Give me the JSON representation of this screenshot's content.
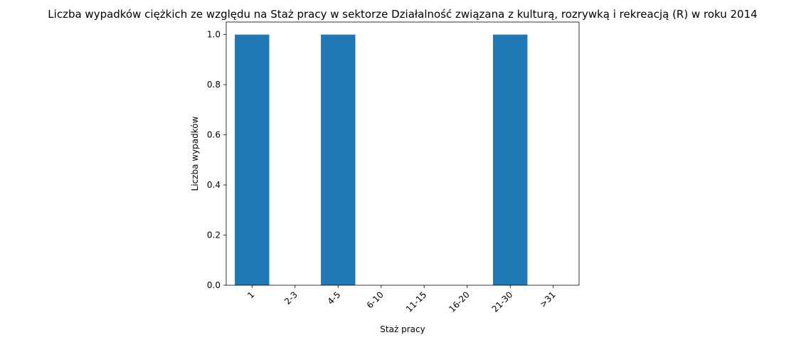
{
  "chart_data": {
    "type": "bar",
    "title": "Liczba wypadków ciężkich ze względu na Staż pracy w sektorze Działalność związana z kulturą, rozrywką i rekreacją (R) w roku 2014",
    "xlabel": "Staż pracy",
    "ylabel": "Liczba wypadków",
    "categories": [
      "1",
      "2-3",
      "4-5",
      "6-10",
      "11-15",
      "16-20",
      "21-30",
      ">31"
    ],
    "values": [
      1,
      0,
      1,
      0,
      0,
      0,
      1,
      0
    ],
    "ylim": [
      0,
      1.05
    ],
    "yticks": [
      "0.0",
      "0.2",
      "0.4",
      "0.6",
      "0.8",
      "1.0"
    ],
    "bar_color": "#1f77b4",
    "grid": false,
    "xtick_rotation": 45
  }
}
